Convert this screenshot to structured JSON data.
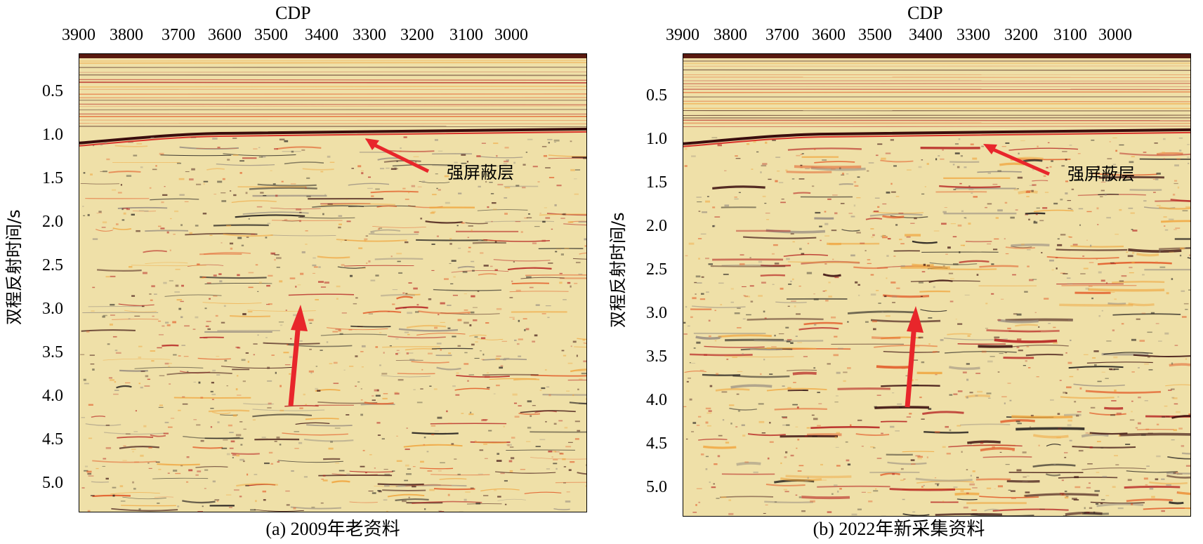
{
  "panel_a": {
    "x_axis_title": "CDP",
    "x_ticks": [
      "3900",
      "3800",
      "3700",
      "3600",
      "3500",
      "3400",
      "3300",
      "3200",
      "3100",
      "3000"
    ],
    "y_ticks": [
      "0.5",
      "1.0",
      "1.5",
      "2.0",
      "2.5",
      "3.0",
      "3.5",
      "4.0",
      "4.5",
      "5.0"
    ],
    "y_axis_title": "双程反射时间/s",
    "annotation": "强屏蔽层",
    "caption": "(a) 2009年老资料"
  },
  "panel_b": {
    "x_axis_title": "CDP",
    "x_ticks": [
      "3900",
      "3800",
      "3700",
      "3600",
      "3500",
      "3400",
      "3300",
      "3200",
      "3100",
      "3000"
    ],
    "y_ticks": [
      "0.5",
      "1.0",
      "1.5",
      "2.0",
      "2.5",
      "3.0",
      "3.5",
      "4.0",
      "4.5",
      "5.0"
    ],
    "y_axis_title": "双程反射时间/s",
    "annotation": "强屏蔽层",
    "caption": "(b) 2022年新采集资料"
  },
  "colors": {
    "arrow": "#e8262b",
    "background_trace": "#efe0a8",
    "strong_reflector": "#3a0d0d"
  }
}
